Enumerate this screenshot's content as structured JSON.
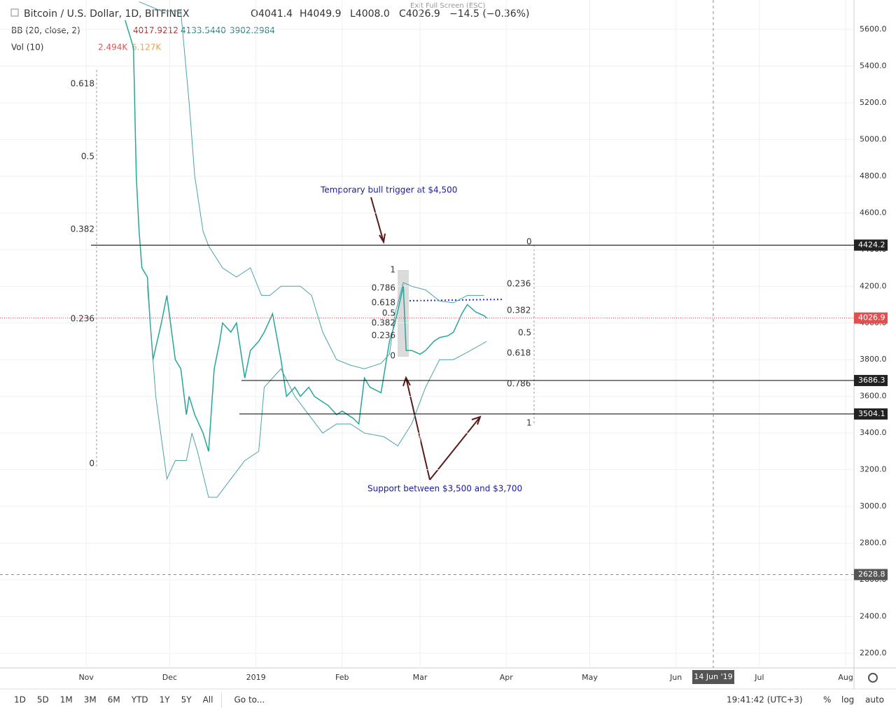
{
  "header": {
    "symbol": "Bitcoin / U.S. Dollar, 1D, BITFINEX",
    "open": "O4041.4",
    "high": "H4049.9",
    "low": "L4008.0",
    "close": "C4026.9",
    "change": "−14.5 (−0.36%)"
  },
  "indicators": {
    "bb": {
      "name": "BB (20, close, 2)",
      "values": [
        "4017.9212",
        "4133.5440",
        "3902.2984"
      ]
    },
    "vol": {
      "name": "Vol (10)",
      "values": [
        "2.494K",
        "6.127K"
      ]
    }
  },
  "exit_fullscreen": "Exit Full Screen (ESC)",
  "chart_data": {
    "type": "line",
    "xlim": [
      0,
      307
    ],
    "ylim": [
      2120,
      5760
    ],
    "xticks": [
      {
        "value": 31,
        "label": "Nov"
      },
      {
        "value": 61,
        "label": "Dec"
      },
      {
        "value": 92,
        "label": "2019"
      },
      {
        "value": 123,
        "label": "Feb"
      },
      {
        "value": 151,
        "label": "Mar"
      },
      {
        "value": 182,
        "label": "Apr"
      },
      {
        "value": 212,
        "label": "May"
      },
      {
        "value": 243,
        "label": "Jun"
      },
      {
        "value": 273,
        "label": "Jul"
      },
      {
        "value": 304,
        "label": "Aug"
      }
    ],
    "yticks": [
      {
        "value": 2200,
        "label": "2200.0"
      },
      {
        "value": 2400,
        "label": "2400.0"
      },
      {
        "value": 2600,
        "label": "2600.0"
      },
      {
        "value": 2800,
        "label": "2800.0"
      },
      {
        "value": 3000,
        "label": "3000.0"
      },
      {
        "value": 3200,
        "label": "3200.0"
      },
      {
        "value": 3400,
        "label": "3400.0"
      },
      {
        "value": 3600,
        "label": "3600.0"
      },
      {
        "value": 3800,
        "label": "3800.0"
      },
      {
        "value": 4000,
        "label": "4000.0"
      },
      {
        "value": 4200,
        "label": "4200.0"
      },
      {
        "value": 4400,
        "label": "4400.0"
      },
      {
        "value": 4600,
        "label": "4600.0"
      },
      {
        "value": 4800,
        "label": "4800.0"
      },
      {
        "value": 5000,
        "label": "5000.0"
      },
      {
        "value": 5200,
        "label": "5200.0"
      },
      {
        "value": 5400,
        "label": "5400.0"
      },
      {
        "value": 5600,
        "label": "5600.0"
      }
    ],
    "series": [
      {
        "color": "#26a69a",
        "x": [
          45,
          48,
          49,
          50,
          51,
          53,
          54,
          55,
          58,
          60,
          63,
          65,
          67,
          68,
          70,
          73,
          75,
          77,
          79,
          80,
          83,
          85,
          88,
          90,
          93,
          95,
          98,
          101,
          103,
          106,
          108,
          111,
          113,
          116,
          118,
          121,
          123,
          127,
          129,
          131,
          133,
          137,
          140,
          142,
          145,
          146,
          148,
          151,
          153,
          156,
          158,
          161,
          163,
          166,
          168,
          171,
          174,
          175
        ],
        "values": [
          5650,
          5500,
          4800,
          4500,
          4300,
          4250,
          4000,
          3800,
          4000,
          4150,
          3800,
          3750,
          3500,
          3600,
          3500,
          3400,
          3300,
          3750,
          3900,
          4000,
          3950,
          4000,
          3700,
          3850,
          3900,
          3950,
          4050,
          3800,
          3600,
          3650,
          3600,
          3650,
          3600,
          3570,
          3550,
          3500,
          3520,
          3480,
          3450,
          3700,
          3650,
          3620,
          3900,
          4000,
          4200,
          3850,
          3850,
          3830,
          3850,
          3900,
          3920,
          3930,
          3950,
          4050,
          4100,
          4060,
          4040,
          4027
        ]
      },
      {
        "color": "#4aa3a8",
        "x": [
          50,
          58,
          65,
          68,
          70,
          73,
          75,
          80,
          85,
          90,
          94,
          97,
          101,
          108,
          112,
          116,
          121,
          126,
          131,
          137,
          140,
          142,
          145,
          148,
          153,
          158,
          163,
          168,
          174
        ],
        "values": [
          5750,
          5700,
          5700,
          5200,
          4800,
          4500,
          4420,
          4300,
          4250,
          4300,
          4150,
          4150,
          4200,
          4200,
          4150,
          3950,
          3800,
          3770,
          3750,
          3780,
          3830,
          4050,
          4220,
          4200,
          4180,
          4120,
          4110,
          4150,
          4150
        ]
      },
      {
        "color": "#4aa3a8",
        "x": [
          53,
          56,
          60,
          63,
          67,
          69,
          71,
          75,
          78,
          83,
          88,
          93,
          95,
          101,
          106,
          111,
          116,
          121,
          126,
          131,
          138,
          143,
          148,
          153,
          158,
          163,
          168,
          175
        ],
        "values": [
          4200,
          3600,
          3150,
          3250,
          3250,
          3400,
          3300,
          3050,
          3050,
          3150,
          3250,
          3300,
          3650,
          3750,
          3600,
          3500,
          3400,
          3450,
          3450,
          3400,
          3380,
          3330,
          3450,
          3650,
          3800,
          3800,
          3840,
          3900
        ]
      }
    ]
  },
  "price_levels": [
    4424.2,
    3686.3,
    3504.1
  ],
  "current_price": 4026.9,
  "crosshair_price": 2628.8,
  "crosshair_date": "14 Jun '19",
  "fib_left": [
    0.618,
    0.5,
    0.382,
    0.236,
    0
  ],
  "fib_mid": [
    1,
    0.786,
    0.618,
    0.5,
    0.382,
    0.236,
    0
  ],
  "fib_right": [
    0,
    0.236,
    0.382,
    0.5,
    0.618,
    0.786,
    1
  ],
  "annotations": [
    "Temporary bull trigger at $4,500",
    "Support between $3,500 and $3,700"
  ],
  "toolbar": {
    "ranges": [
      "1D",
      "5D",
      "1M",
      "3M",
      "6M",
      "YTD",
      "1Y",
      "5Y",
      "All"
    ],
    "goto": "Go to...",
    "clock": "19:41:42 (UTC+3)",
    "options": [
      "%",
      "log",
      "auto"
    ]
  }
}
